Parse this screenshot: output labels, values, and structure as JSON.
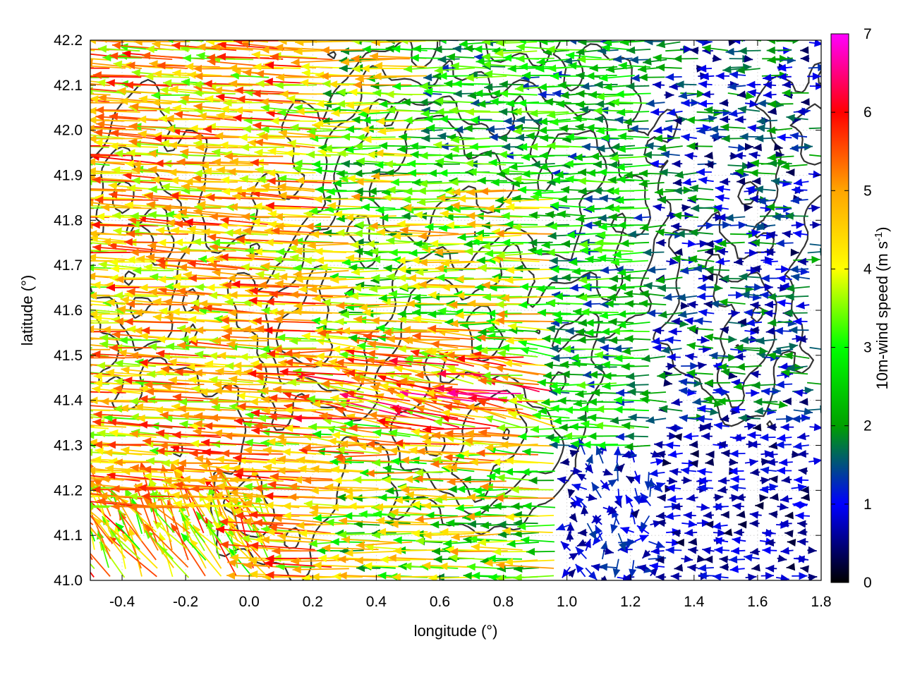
{
  "chart_data": {
    "type": "vector-field-with-contours",
    "xlabel": "longitude (°)",
    "ylabel": "latitude (°)",
    "xlim": [
      -0.5,
      1.8
    ],
    "ylim": [
      41.0,
      42.2
    ],
    "xticks": [
      "-0.4",
      "-0.2",
      "0.0",
      "0.2",
      "0.4",
      "0.6",
      "0.8",
      "1.0",
      "1.2",
      "1.4",
      "1.6",
      "1.8"
    ],
    "yticks": [
      "41.0",
      "41.1",
      "41.2",
      "41.3",
      "41.4",
      "41.5",
      "41.6",
      "41.7",
      "41.8",
      "41.9",
      "42.0",
      "42.1",
      "42.2"
    ],
    "colorbar": {
      "label_main": "10m-wind speed (m s",
      "label_sup": "-1",
      "label_end": ")",
      "range": [
        0,
        7
      ],
      "ticks": [
        "0",
        "1",
        "2",
        "3",
        "4",
        "5",
        "6",
        "7"
      ],
      "stops": [
        "#000000",
        "#0000ff",
        "#00a000",
        "#00ff00",
        "#ffff00",
        "#ffa500",
        "#ff0000",
        "#ff00ff"
      ]
    },
    "grid": "dotted",
    "wind_regimes": [
      {
        "region": "west (lon < 0.3)",
        "direction": "westward",
        "speed_range": [
          3,
          6.5
        ]
      },
      {
        "region": "central (0.3 < lon < 1.0)",
        "direction": "westward to north-westward",
        "speed_range": [
          1.5,
          6.5
        ]
      },
      {
        "region": "east (lon > 1.2)",
        "direction": "weak, variable",
        "speed_range": [
          0,
          2.5
        ]
      }
    ]
  }
}
